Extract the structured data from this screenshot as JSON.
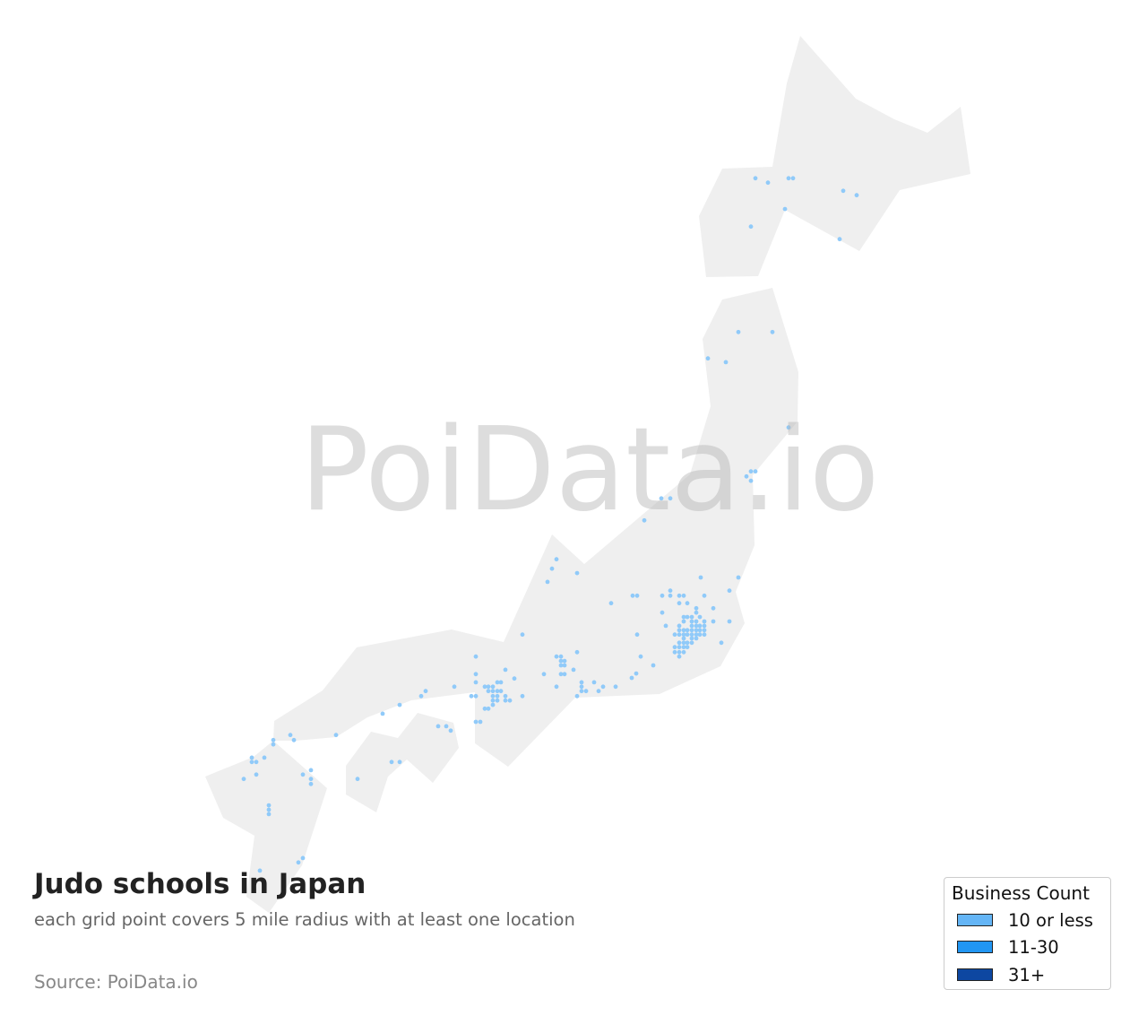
{
  "title": "Judo schools in Japan",
  "subtitle": "each grid point covers 5 mile radius with at least one location",
  "source": "Source: PoiData.io",
  "watermark": "PoiData.io",
  "colors": {
    "land": "#efefef",
    "point": "#90caf9",
    "background": "#ffffff"
  },
  "legend": {
    "title": "Business Count",
    "position": "bottom-right",
    "items": [
      {
        "label": "10 or less",
        "color": "#64b5f6"
      },
      {
        "label": "11-30",
        "color": "#2196f3"
      },
      {
        "label": "31+",
        "color": "#0d47a1"
      }
    ]
  },
  "points_by_lat": [
    {
      "lat": 42.96,
      "lons": [
        141.16,
        141.9,
        142.0
      ]
    },
    {
      "lat": 42.89,
      "lons": [
        141.44
      ]
    },
    {
      "lat": 42.76,
      "lons": [
        143.12
      ]
    },
    {
      "lat": 42.69,
      "lons": [
        143.42
      ]
    },
    {
      "lat": 42.47,
      "lons": [
        141.82
      ]
    },
    {
      "lat": 42.19,
      "lons": [
        141.06
      ]
    },
    {
      "lat": 41.99,
      "lons": [
        143.04
      ]
    },
    {
      "lat": 40.51,
      "lons": [
        140.78,
        141.54
      ]
    },
    {
      "lat": 40.09,
      "lons": [
        140.1
      ]
    },
    {
      "lat": 40.03,
      "lons": [
        140.5
      ]
    },
    {
      "lat": 38.99,
      "lons": [
        141.9
      ]
    },
    {
      "lat": 38.29,
      "lons": [
        141.06,
        141.16
      ]
    },
    {
      "lat": 38.21,
      "lons": [
        140.96
      ]
    },
    {
      "lat": 38.14,
      "lons": [
        141.06
      ]
    },
    {
      "lat": 37.86,
      "lons": [
        139.06,
        139.26
      ]
    },
    {
      "lat": 37.51,
      "lons": [
        138.68
      ]
    },
    {
      "lat": 36.89,
      "lons": [
        136.72
      ]
    },
    {
      "lat": 36.74,
      "lons": [
        136.62
      ]
    },
    {
      "lat": 36.67,
      "lons": [
        137.18
      ]
    },
    {
      "lat": 36.6,
      "lons": [
        139.94,
        140.78
      ]
    },
    {
      "lat": 36.53,
      "lons": [
        136.52
      ]
    },
    {
      "lat": 36.39,
      "lons": [
        139.26,
        140.58
      ]
    },
    {
      "lat": 36.31,
      "lons": [
        138.42,
        138.52,
        139.08,
        139.26,
        139.46,
        139.56,
        140.02
      ]
    },
    {
      "lat": 36.19,
      "lons": [
        137.94,
        139.46,
        139.64
      ]
    },
    {
      "lat": 36.11,
      "lons": [
        139.84,
        140.22
      ]
    },
    {
      "lat": 36.04,
      "lons": [
        139.08,
        139.84
      ]
    },
    {
      "lat": 35.97,
      "lons": [
        139.56,
        139.64,
        139.74,
        139.92
      ]
    },
    {
      "lat": 35.9,
      "lons": [
        139.56,
        139.74,
        139.84,
        140.02,
        140.22,
        140.58
      ]
    },
    {
      "lat": 35.83,
      "lons": [
        139.16,
        139.46,
        139.74,
        139.84,
        139.92,
        140.02
      ]
    },
    {
      "lat": 35.76,
      "lons": [
        139.46,
        139.56,
        139.64,
        139.74,
        139.84,
        139.92,
        140.02
      ]
    },
    {
      "lat": 35.69,
      "lons": [
        135.96,
        138.52,
        139.36,
        139.46,
        139.56,
        139.64,
        139.74,
        139.84,
        139.92,
        140.02
      ]
    },
    {
      "lat": 35.63,
      "lons": [
        139.56,
        139.74,
        139.84
      ]
    },
    {
      "lat": 35.56,
      "lons": [
        139.46,
        139.56,
        139.64,
        139.74,
        140.4
      ]
    },
    {
      "lat": 35.49,
      "lons": [
        139.36,
        139.46,
        139.56,
        139.64
      ]
    },
    {
      "lat": 35.41,
      "lons": [
        137.18,
        139.36,
        139.46,
        139.56
      ]
    },
    {
      "lat": 35.34,
      "lons": [
        134.92,
        136.72,
        136.82,
        138.6,
        139.46
      ]
    },
    {
      "lat": 35.27,
      "lons": [
        136.82,
        136.9
      ]
    },
    {
      "lat": 35.2,
      "lons": [
        136.82,
        136.9,
        138.88
      ]
    },
    {
      "lat": 35.13,
      "lons": [
        135.58,
        137.1
      ]
    },
    {
      "lat": 35.07,
      "lons": [
        138.5
      ]
    },
    {
      "lat": 35.06,
      "lons": [
        134.92,
        136.44,
        136.82,
        136.9
      ]
    },
    {
      "lat": 35.0,
      "lons": [
        138.4
      ]
    },
    {
      "lat": 34.99,
      "lons": [
        135.78
      ]
    },
    {
      "lat": 34.93,
      "lons": [
        134.92,
        135.4,
        135.48,
        137.28,
        137.56
      ]
    },
    {
      "lat": 34.86,
      "lons": [
        134.44,
        135.12,
        135.2,
        135.3,
        136.72,
        137.28,
        137.76,
        138.04
      ]
    },
    {
      "lat": 34.79,
      "lons": [
        133.8,
        135.2,
        135.3,
        135.4,
        135.48,
        137.28,
        137.38,
        137.66
      ]
    },
    {
      "lat": 34.71,
      "lons": [
        133.7,
        134.82,
        134.92,
        135.3,
        135.4,
        135.58,
        135.96,
        137.18
      ]
    },
    {
      "lat": 34.64,
      "lons": [
        135.3,
        135.4,
        135.58,
        135.68
      ]
    },
    {
      "lat": 34.57,
      "lons": [
        133.22,
        135.3
      ]
    },
    {
      "lat": 34.51,
      "lons": [
        135.12,
        135.2
      ]
    },
    {
      "lat": 34.43,
      "lons": [
        132.84
      ]
    },
    {
      "lat": 34.3,
      "lons": [
        134.92,
        135.02
      ]
    },
    {
      "lat": 34.23,
      "lons": [
        134.08,
        134.26
      ]
    },
    {
      "lat": 34.16,
      "lons": [
        134.36
      ]
    },
    {
      "lat": 34.09,
      "lons": [
        130.78,
        131.8
      ]
    },
    {
      "lat": 34.01,
      "lons": [
        130.4,
        130.86
      ]
    },
    {
      "lat": 33.94,
      "lons": [
        130.4
      ]
    },
    {
      "lat": 33.73,
      "lons": [
        129.92,
        130.2
      ]
    },
    {
      "lat": 33.66,
      "lons": [
        129.92,
        130.02,
        133.04,
        133.22
      ]
    },
    {
      "lat": 33.53,
      "lons": [
        131.24
      ]
    },
    {
      "lat": 33.46,
      "lons": [
        130.02,
        131.06
      ]
    },
    {
      "lat": 33.39,
      "lons": [
        129.74,
        131.24,
        132.28
      ]
    },
    {
      "lat": 33.31,
      "lons": [
        131.24
      ]
    },
    {
      "lat": 32.97,
      "lons": [
        130.3
      ]
    },
    {
      "lat": 32.9,
      "lons": [
        130.3
      ]
    },
    {
      "lat": 32.83,
      "lons": [
        130.3
      ]
    },
    {
      "lat": 32.13,
      "lons": [
        131.06
      ]
    },
    {
      "lat": 32.06,
      "lons": [
        130.96
      ]
    },
    {
      "lat": 31.93,
      "lons": [
        130.1
      ]
    }
  ]
}
